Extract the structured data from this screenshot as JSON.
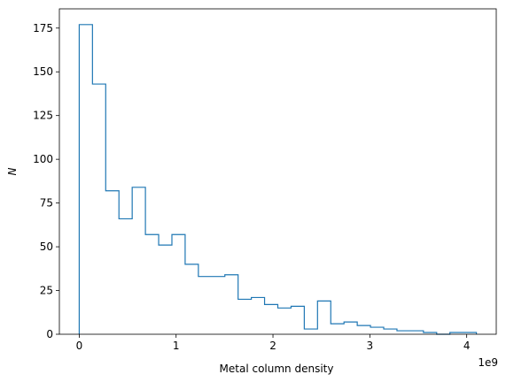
{
  "chart_data": {
    "type": "histogram-step",
    "title": "",
    "xlabel": "Metal column density",
    "ylabel": "N",
    "x_offset_label": "1e9",
    "xlim": [
      -0.205,
      4.305
    ],
    "ylim": [
      0,
      186
    ],
    "x_ticks": [
      0,
      1,
      2,
      3,
      4
    ],
    "x_tick_labels": [
      "0",
      "1",
      "2",
      "3",
      "4"
    ],
    "y_ticks": [
      0,
      25,
      50,
      75,
      100,
      125,
      150,
      175
    ],
    "y_tick_labels": [
      "0",
      "25",
      "50",
      "75",
      "100",
      "125",
      "150",
      "175"
    ],
    "bin_edges": [
      0.0,
      0.1367,
      0.2733,
      0.41,
      0.5467,
      0.6833,
      0.82,
      0.9567,
      1.0933,
      1.23,
      1.3667,
      1.5033,
      1.64,
      1.7767,
      1.9133,
      2.05,
      2.1867,
      2.3233,
      2.46,
      2.5967,
      2.7333,
      2.87,
      3.0067,
      3.1433,
      3.28,
      3.4167,
      3.5533,
      3.69,
      3.8267,
      3.9633,
      4.1
    ],
    "counts": [
      177,
      143,
      82,
      66,
      84,
      57,
      51,
      57,
      40,
      33,
      33,
      34,
      20,
      21,
      17,
      15,
      16,
      3,
      19,
      6,
      7,
      5,
      4,
      3,
      2,
      2,
      1,
      0,
      1,
      1
    ],
    "grid": false,
    "legend": "none",
    "colors": {
      "line": "#1f77b4",
      "axis": "#000000"
    }
  }
}
